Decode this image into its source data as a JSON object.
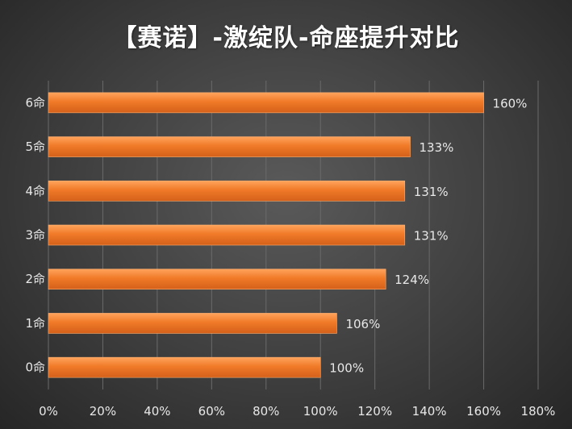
{
  "chart_data": {
    "type": "bar",
    "orientation": "horizontal",
    "title": "【赛诺】-激绽队-命座提升对比",
    "categories": [
      "0命",
      "1命",
      "2命",
      "3命",
      "4命",
      "5命",
      "6命"
    ],
    "values": [
      100,
      106,
      124,
      131,
      131,
      133,
      160
    ],
    "value_labels": [
      "100%",
      "106%",
      "124%",
      "131%",
      "131%",
      "133%",
      "160%"
    ],
    "x_ticks": [
      "0%",
      "20%",
      "40%",
      "60%",
      "80%",
      "100%",
      "120%",
      "140%",
      "160%",
      "180%"
    ],
    "xlim": [
      0,
      180
    ],
    "grid": true,
    "legend": "none",
    "colors": {
      "bar": "#f07a28",
      "bar_highlight": "#ff9a4a",
      "grid": "#6a6a6a",
      "text": "#e8e8e8"
    }
  }
}
